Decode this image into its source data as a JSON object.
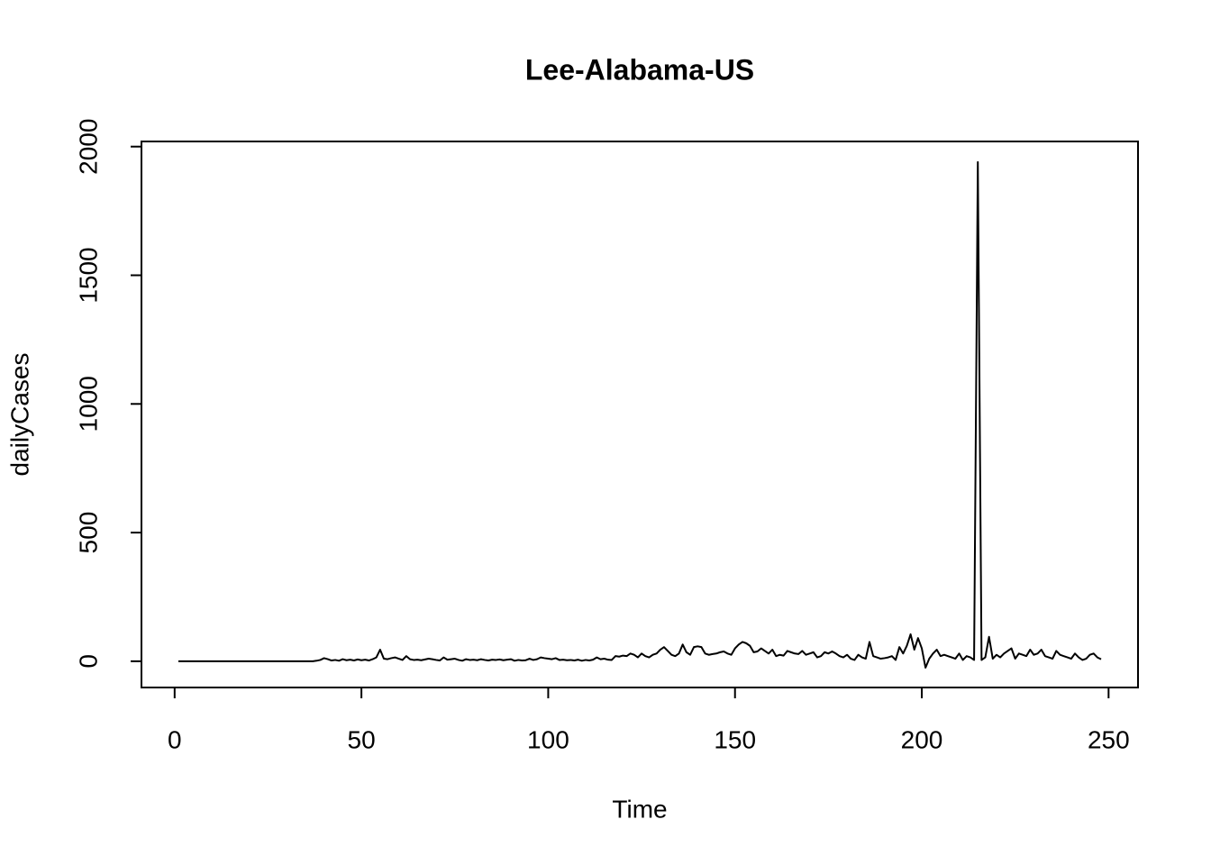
{
  "chart_data": {
    "type": "line",
    "title": "Lee-Alabama-US",
    "x_label": "Time",
    "y_label": "dailyCases",
    "x": [
      1,
      2,
      3,
      4,
      5,
      6,
      7,
      8,
      9,
      10,
      11,
      12,
      13,
      14,
      15,
      16,
      17,
      18,
      19,
      20,
      21,
      22,
      23,
      24,
      25,
      26,
      27,
      28,
      29,
      30,
      31,
      32,
      33,
      34,
      35,
      36,
      37,
      38,
      39,
      40,
      41,
      42,
      43,
      44,
      45,
      46,
      47,
      48,
      49,
      50,
      51,
      52,
      53,
      54,
      55,
      56,
      57,
      58,
      59,
      60,
      61,
      62,
      63,
      64,
      65,
      66,
      67,
      68,
      69,
      70,
      71,
      72,
      73,
      74,
      75,
      76,
      77,
      78,
      79,
      80,
      81,
      82,
      83,
      84,
      85,
      86,
      87,
      88,
      89,
      90,
      91,
      92,
      93,
      94,
      95,
      96,
      97,
      98,
      99,
      100,
      101,
      102,
      103,
      104,
      105,
      106,
      107,
      108,
      109,
      110,
      111,
      112,
      113,
      114,
      115,
      116,
      117,
      118,
      119,
      120,
      121,
      122,
      123,
      124,
      125,
      126,
      127,
      128,
      129,
      130,
      131,
      132,
      133,
      134,
      135,
      136,
      137,
      138,
      139,
      140,
      141,
      142,
      143,
      144,
      145,
      146,
      147,
      148,
      149,
      150,
      151,
      152,
      153,
      154,
      155,
      156,
      157,
      158,
      159,
      160,
      161,
      162,
      163,
      164,
      165,
      166,
      167,
      168,
      169,
      170,
      171,
      172,
      173,
      174,
      175,
      176,
      177,
      178,
      179,
      180,
      181,
      182,
      183,
      184,
      185,
      186,
      187,
      188,
      189,
      190,
      191,
      192,
      193,
      194,
      195,
      196,
      197,
      198,
      199,
      200,
      201,
      202,
      203,
      204,
      205,
      206,
      207,
      208,
      209,
      210,
      211,
      212,
      213,
      214,
      215,
      216,
      217,
      218,
      219,
      220,
      221,
      222,
      223,
      224,
      225,
      226,
      227,
      228,
      229,
      230,
      231,
      232,
      233,
      234,
      235,
      236,
      237,
      238,
      239,
      240,
      241,
      242,
      243,
      244,
      245,
      246,
      247,
      248
    ],
    "series": [
      {
        "name": "dailyCases",
        "color": "#000000",
        "values": [
          0,
          0,
          0,
          0,
          0,
          0,
          0,
          0,
          0,
          0,
          0,
          0,
          0,
          0,
          0,
          0,
          0,
          0,
          0,
          0,
          0,
          0,
          0,
          0,
          0,
          0,
          0,
          0,
          0,
          0,
          0,
          0,
          0,
          0,
          0,
          0,
          0,
          2,
          5,
          12,
          8,
          3,
          5,
          2,
          8,
          4,
          6,
          3,
          7,
          4,
          6,
          3,
          8,
          15,
          45,
          10,
          8,
          12,
          15,
          10,
          5,
          20,
          8,
          5,
          6,
          4,
          7,
          10,
          8,
          5,
          3,
          15,
          6,
          8,
          10,
          5,
          2,
          8,
          5,
          6,
          4,
          8,
          5,
          3,
          6,
          5,
          7,
          4,
          6,
          8,
          2,
          5,
          3,
          4,
          10,
          5,
          8,
          15,
          12,
          10,
          8,
          12,
          5,
          6,
          4,
          5,
          3,
          6,
          2,
          5,
          3,
          6,
          15,
          8,
          10,
          6,
          5,
          20,
          18,
          22,
          20,
          30,
          25,
          15,
          30,
          20,
          15,
          25,
          30,
          45,
          55,
          40,
          25,
          20,
          30,
          65,
          35,
          25,
          55,
          58,
          55,
          30,
          25,
          28,
          30,
          35,
          38,
          30,
          25,
          50,
          65,
          75,
          70,
          60,
          35,
          38,
          50,
          40,
          30,
          45,
          20,
          25,
          22,
          40,
          35,
          30,
          28,
          40,
          25,
          30,
          35,
          15,
          20,
          35,
          30,
          38,
          30,
          20,
          15,
          25,
          10,
          5,
          25,
          15,
          10,
          75,
          20,
          15,
          10,
          12,
          15,
          20,
          5,
          55,
          30,
          60,
          105,
          45,
          90,
          50,
          -25,
          10,
          30,
          45,
          20,
          25,
          20,
          15,
          10,
          30,
          5,
          20,
          15,
          5,
          1940,
          5,
          15,
          95,
          10,
          25,
          15,
          30,
          40,
          50,
          10,
          30,
          25,
          20,
          45,
          25,
          30,
          45,
          20,
          15,
          10,
          40,
          25,
          20,
          15,
          10,
          30,
          15,
          5,
          10,
          25,
          30,
          15,
          8
        ]
      }
    ],
    "xlim": [
      -8.88,
      257.88
    ],
    "ylim": [
      -102,
      2020
    ],
    "xticks": [
      0,
      50,
      100,
      150,
      200,
      250
    ],
    "yticks": [
      0,
      500,
      1000,
      1500,
      2000
    ]
  }
}
